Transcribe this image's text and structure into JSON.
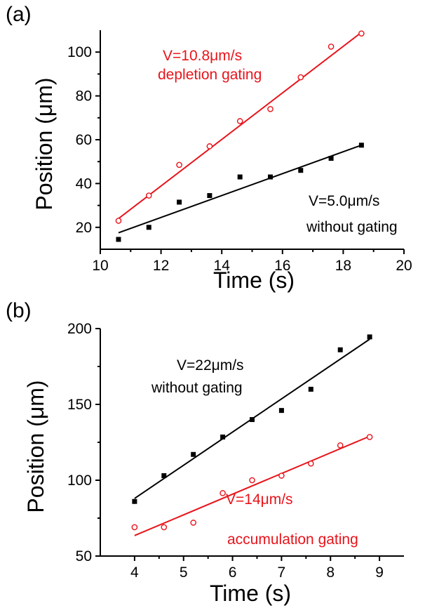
{
  "chart_data": [
    {
      "type": "scatter",
      "panel_label": "(a)",
      "xlabel": "Time (s)",
      "ylabel": "Position (μm)",
      "xlim": [
        10,
        20
      ],
      "ylim": [
        10,
        110
      ],
      "xticks": [
        10,
        12,
        14,
        16,
        18,
        20
      ],
      "yticks": [
        20,
        40,
        60,
        80,
        100
      ],
      "xtick_labels": [
        "10",
        "12",
        "14",
        "16",
        "18",
        "20"
      ],
      "ytick_labels": [
        "20",
        "40",
        "60",
        "80",
        "100"
      ],
      "series": [
        {
          "color": "#e8141b",
          "marker": "open-circle",
          "x": [
            10.6,
            11.6,
            12.6,
            13.6,
            14.6,
            15.6,
            16.6,
            17.6,
            18.6
          ],
          "y": [
            23,
            34.5,
            48.5,
            57,
            68.5,
            74,
            88.5,
            102.5,
            108.5
          ],
          "fit": {
            "x": [
              10.6,
              18.6
            ],
            "y": [
              24,
              109
            ]
          }
        },
        {
          "color": "#000000",
          "marker": "filled-square",
          "x": [
            10.6,
            11.6,
            12.6,
            13.6,
            14.6,
            15.6,
            16.6,
            17.6,
            18.6
          ],
          "y": [
            14.5,
            20,
            31.5,
            34.5,
            43,
            43,
            46,
            51.5,
            57.5
          ],
          "fit": {
            "x": [
              10.6,
              18.6
            ],
            "y": [
              17.5,
              57.5
            ]
          }
        }
      ],
      "annotations": [
        {
          "lines": [
            "V=10.8μm/s",
            "depletion gating"
          ],
          "color": "#e8141b"
        },
        {
          "lines": [
            "V=5.0μm/s",
            "without gating"
          ],
          "color": "#000000"
        }
      ]
    },
    {
      "type": "scatter",
      "panel_label": "(b)",
      "xlabel": "Time (s)",
      "ylabel": "Position (μm)",
      "xlim": [
        3.3,
        9.5
      ],
      "ylim": [
        50,
        200
      ],
      "xticks": [
        4,
        5,
        6,
        7,
        8,
        9
      ],
      "yticks": [
        50,
        100,
        150,
        200
      ],
      "xtick_labels": [
        "4",
        "5",
        "6",
        "7",
        "8",
        "9"
      ],
      "ytick_labels": [
        "50",
        "100",
        "150",
        "200"
      ],
      "series": [
        {
          "color": "#000000",
          "marker": "filled-square",
          "x": [
            4.0,
            4.6,
            5.2,
            5.8,
            6.4,
            7.0,
            7.6,
            8.2,
            8.8
          ],
          "y": [
            86,
            103,
            117,
            128.5,
            140,
            146,
            160,
            186,
            194.5
          ],
          "fit": {
            "x": [
              4.0,
              8.8
            ],
            "y": [
              88,
              193
            ]
          }
        },
        {
          "color": "#e8141b",
          "marker": "open-circle",
          "x": [
            4.0,
            4.6,
            5.2,
            5.8,
            6.4,
            7.0,
            7.6,
            8.2,
            8.8
          ],
          "y": [
            69,
            69,
            72,
            91.5,
            100,
            103,
            111,
            123,
            128.5
          ],
          "fit": {
            "x": [
              4.0,
              8.8
            ],
            "y": [
              63.5,
              129
            ]
          }
        }
      ],
      "annotations": [
        {
          "lines": [
            "V=22μm/s",
            "without gating"
          ],
          "color": "#000000"
        },
        {
          "lines": [
            "V=14μm/s",
            "accumulation gating"
          ],
          "color": "#e8141b"
        }
      ]
    }
  ]
}
